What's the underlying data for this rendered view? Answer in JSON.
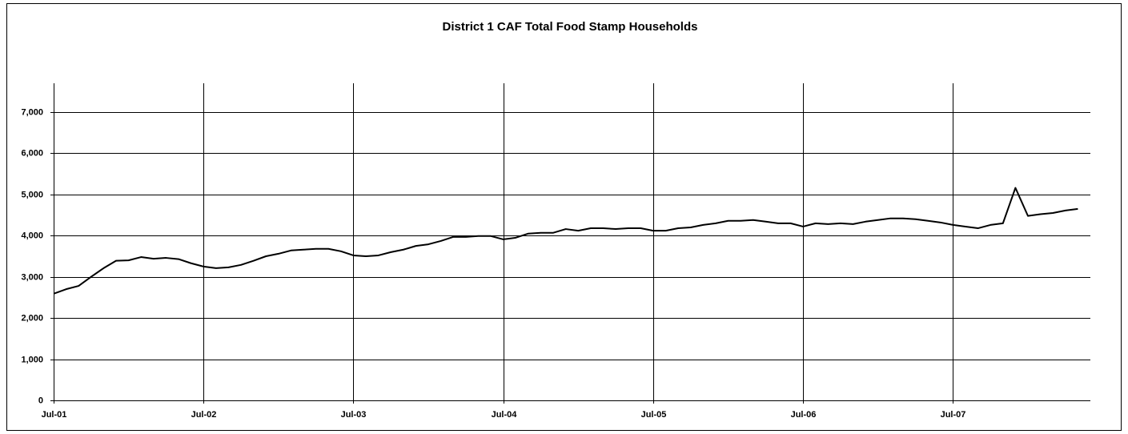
{
  "chart_data": {
    "type": "line",
    "title": "District 1 CAF Total Food Stamp Households",
    "categories": [
      "Jul-01",
      null,
      null,
      null,
      null,
      null,
      null,
      null,
      null,
      null,
      null,
      null,
      "Jul-02",
      null,
      null,
      null,
      null,
      null,
      null,
      null,
      null,
      null,
      null,
      null,
      "Jul-03",
      null,
      null,
      null,
      null,
      null,
      null,
      null,
      null,
      null,
      null,
      null,
      "Jul-04",
      null,
      null,
      null,
      null,
      null,
      null,
      null,
      null,
      null,
      null,
      null,
      "Jul-05",
      null,
      null,
      null,
      null,
      null,
      null,
      null,
      null,
      null,
      null,
      null,
      "Jul-06",
      null,
      null,
      null,
      null,
      null,
      null,
      null,
      null,
      null,
      null,
      null,
      "Jul-07",
      null,
      null,
      null,
      null,
      null,
      null,
      null,
      null,
      null,
      null
    ],
    "values": [
      2590,
      2700,
      2780,
      3000,
      3210,
      3390,
      3400,
      3480,
      3440,
      3460,
      3430,
      3330,
      3250,
      3210,
      3230,
      3290,
      3390,
      3500,
      3560,
      3640,
      3660,
      3680,
      3680,
      3620,
      3520,
      3500,
      3520,
      3600,
      3660,
      3750,
      3790,
      3870,
      3970,
      3970,
      3990,
      3990,
      3910,
      3950,
      4050,
      4070,
      4070,
      4160,
      4120,
      4180,
      4180,
      4160,
      4180,
      4180,
      4120,
      4120,
      4180,
      4200,
      4260,
      4300,
      4360,
      4360,
      4380,
      4340,
      4300,
      4300,
      4220,
      4300,
      4280,
      4300,
      4280,
      4340,
      4380,
      4420,
      4420,
      4400,
      4360,
      4320,
      4260,
      4220,
      4180,
      4260,
      4300,
      5160,
      4480,
      4520,
      4550,
      4610,
      4650
    ],
    "color": "#000000",
    "ylim": [
      0,
      7700
    ],
    "yticks": [
      0,
      {
        "value": 1000,
        "label": "1,000"
      },
      {
        "value": 2000,
        "label": "2,000"
      },
      {
        "value": 3000,
        "label": "3,000"
      },
      {
        "value": 4000,
        "label": "4,000"
      },
      {
        "value": 5000,
        "label": "5,000"
      },
      {
        "value": 6000,
        "label": "6,000"
      },
      {
        "value": 7000,
        "label": "7,000"
      }
    ],
    "grid": true
  }
}
